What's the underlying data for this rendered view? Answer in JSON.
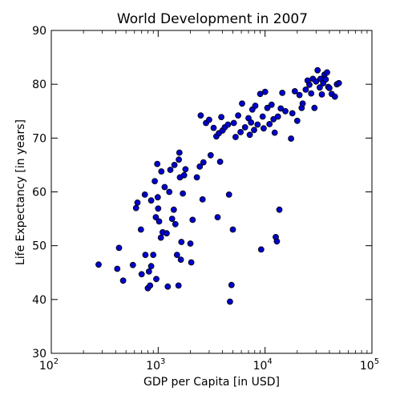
{
  "chart_data": {
    "type": "scatter",
    "title": "World Development in 2007",
    "xlabel": "GDP per Capita [in USD]",
    "ylabel": "Life Expectancy [in years]",
    "x_scale": "log",
    "xlim": [
      100,
      100000
    ],
    "ylim": [
      30,
      90
    ],
    "x_ticks": [
      100,
      1000,
      10000,
      100000
    ],
    "x_tick_labels": [
      {
        "base": "10",
        "exp": "2"
      },
      {
        "base": "10",
        "exp": "3"
      },
      {
        "base": "10",
        "exp": "4"
      },
      {
        "base": "10",
        "exp": "5"
      }
    ],
    "y_ticks": [
      30,
      40,
      50,
      60,
      70,
      80,
      90
    ],
    "y_tick_labels": [
      "30",
      "40",
      "50",
      "60",
      "70",
      "80",
      "90"
    ],
    "grid": false,
    "marker_color": "#0000cc",
    "marker_edge_color": "#000000",
    "points": [
      {
        "x": 277,
        "y": 46.5
      },
      {
        "x": 414,
        "y": 45.7
      },
      {
        "x": 430,
        "y": 49.6
      },
      {
        "x": 470,
        "y": 43.5
      },
      {
        "x": 580,
        "y": 46.4
      },
      {
        "x": 620,
        "y": 57.0
      },
      {
        "x": 640,
        "y": 58.0
      },
      {
        "x": 690,
        "y": 53.0
      },
      {
        "x": 700,
        "y": 44.7
      },
      {
        "x": 750,
        "y": 59.5
      },
      {
        "x": 760,
        "y": 48.3
      },
      {
        "x": 800,
        "y": 42.1
      },
      {
        "x": 820,
        "y": 45.2
      },
      {
        "x": 840,
        "y": 42.6
      },
      {
        "x": 860,
        "y": 46.2
      },
      {
        "x": 860,
        "y": 58.4
      },
      {
        "x": 900,
        "y": 48.3
      },
      {
        "x": 930,
        "y": 62.0
      },
      {
        "x": 950,
        "y": 55.3
      },
      {
        "x": 960,
        "y": 43.8
      },
      {
        "x": 980,
        "y": 65.2
      },
      {
        "x": 990,
        "y": 59.0
      },
      {
        "x": 1000,
        "y": 56.9
      },
      {
        "x": 1020,
        "y": 54.5
      },
      {
        "x": 1060,
        "y": 51.5
      },
      {
        "x": 1070,
        "y": 63.8
      },
      {
        "x": 1100,
        "y": 52.5
      },
      {
        "x": 1150,
        "y": 60.9
      },
      {
        "x": 1200,
        "y": 52.3
      },
      {
        "x": 1230,
        "y": 42.4
      },
      {
        "x": 1270,
        "y": 60.0
      },
      {
        "x": 1300,
        "y": 64.1
      },
      {
        "x": 1350,
        "y": 55.0
      },
      {
        "x": 1400,
        "y": 56.7
      },
      {
        "x": 1420,
        "y": 65.0
      },
      {
        "x": 1450,
        "y": 54.0
      },
      {
        "x": 1500,
        "y": 48.3
      },
      {
        "x": 1550,
        "y": 42.6
      },
      {
        "x": 1560,
        "y": 66.0
      },
      {
        "x": 1580,
        "y": 67.3
      },
      {
        "x": 1600,
        "y": 62.7
      },
      {
        "x": 1630,
        "y": 47.4
      },
      {
        "x": 1650,
        "y": 50.7
      },
      {
        "x": 1700,
        "y": 59.7
      },
      {
        "x": 1750,
        "y": 63.1
      },
      {
        "x": 1800,
        "y": 64.2
      },
      {
        "x": 2000,
        "y": 50.4
      },
      {
        "x": 2040,
        "y": 46.9
      },
      {
        "x": 2100,
        "y": 54.8
      },
      {
        "x": 2300,
        "y": 62.7
      },
      {
        "x": 2450,
        "y": 64.7
      },
      {
        "x": 2500,
        "y": 74.2
      },
      {
        "x": 2600,
        "y": 58.6
      },
      {
        "x": 2650,
        "y": 65.5
      },
      {
        "x": 2800,
        "y": 72.8
      },
      {
        "x": 3000,
        "y": 73.4
      },
      {
        "x": 3100,
        "y": 66.8
      },
      {
        "x": 3300,
        "y": 71.9
      },
      {
        "x": 3500,
        "y": 70.3
      },
      {
        "x": 3600,
        "y": 55.3
      },
      {
        "x": 3700,
        "y": 70.9
      },
      {
        "x": 3800,
        "y": 65.6
      },
      {
        "x": 3900,
        "y": 73.9
      },
      {
        "x": 4000,
        "y": 71.4
      },
      {
        "x": 4200,
        "y": 72.0
      },
      {
        "x": 4500,
        "y": 72.5
      },
      {
        "x": 4600,
        "y": 59.5
      },
      {
        "x": 4700,
        "y": 39.6
      },
      {
        "x": 4850,
        "y": 42.7
      },
      {
        "x": 5000,
        "y": 53.0
      },
      {
        "x": 5100,
        "y": 72.8
      },
      {
        "x": 5300,
        "y": 70.2
      },
      {
        "x": 5600,
        "y": 74.2
      },
      {
        "x": 5900,
        "y": 71.1
      },
      {
        "x": 6100,
        "y": 76.4
      },
      {
        "x": 6500,
        "y": 72.0
      },
      {
        "x": 7000,
        "y": 73.7
      },
      {
        "x": 7200,
        "y": 70.6
      },
      {
        "x": 7400,
        "y": 72.9
      },
      {
        "x": 7600,
        "y": 75.3
      },
      {
        "x": 7900,
        "y": 71.5
      },
      {
        "x": 8100,
        "y": 76.0
      },
      {
        "x": 8500,
        "y": 72.5
      },
      {
        "x": 9000,
        "y": 78.2
      },
      {
        "x": 9200,
        "y": 49.3
      },
      {
        "x": 9500,
        "y": 74.0
      },
      {
        "x": 9700,
        "y": 71.8
      },
      {
        "x": 10000,
        "y": 78.6
      },
      {
        "x": 10500,
        "y": 75.6
      },
      {
        "x": 11000,
        "y": 72.6
      },
      {
        "x": 11500,
        "y": 76.2
      },
      {
        "x": 12000,
        "y": 73.5
      },
      {
        "x": 12300,
        "y": 71.0
      },
      {
        "x": 12600,
        "y": 51.6
      },
      {
        "x": 12900,
        "y": 50.8
      },
      {
        "x": 13200,
        "y": 74.0
      },
      {
        "x": 13600,
        "y": 56.7
      },
      {
        "x": 14000,
        "y": 75.5
      },
      {
        "x": 14500,
        "y": 78.4
      },
      {
        "x": 15500,
        "y": 75.0
      },
      {
        "x": 17500,
        "y": 69.9
      },
      {
        "x": 18000,
        "y": 74.6
      },
      {
        "x": 19000,
        "y": 78.7
      },
      {
        "x": 20000,
        "y": 73.2
      },
      {
        "x": 21000,
        "y": 78.0
      },
      {
        "x": 22000,
        "y": 75.6
      },
      {
        "x": 22500,
        "y": 76.4
      },
      {
        "x": 24000,
        "y": 79.0
      },
      {
        "x": 25000,
        "y": 80.7
      },
      {
        "x": 26000,
        "y": 79.9
      },
      {
        "x": 27000,
        "y": 78.3
      },
      {
        "x": 28000,
        "y": 81.0
      },
      {
        "x": 29000,
        "y": 75.6
      },
      {
        "x": 30000,
        "y": 80.5
      },
      {
        "x": 31000,
        "y": 82.6
      },
      {
        "x": 32500,
        "y": 79.4
      },
      {
        "x": 33000,
        "y": 81.0
      },
      {
        "x": 34000,
        "y": 78.1
      },
      {
        "x": 35000,
        "y": 80.2
      },
      {
        "x": 36000,
        "y": 81.8
      },
      {
        "x": 37000,
        "y": 80.9
      },
      {
        "x": 38000,
        "y": 82.2
      },
      {
        "x": 39000,
        "y": 79.5
      },
      {
        "x": 40000,
        "y": 79.3
      },
      {
        "x": 42000,
        "y": 78.2
      },
      {
        "x": 45000,
        "y": 77.7
      },
      {
        "x": 47000,
        "y": 80.0
      },
      {
        "x": 49000,
        "y": 80.2
      }
    ]
  }
}
